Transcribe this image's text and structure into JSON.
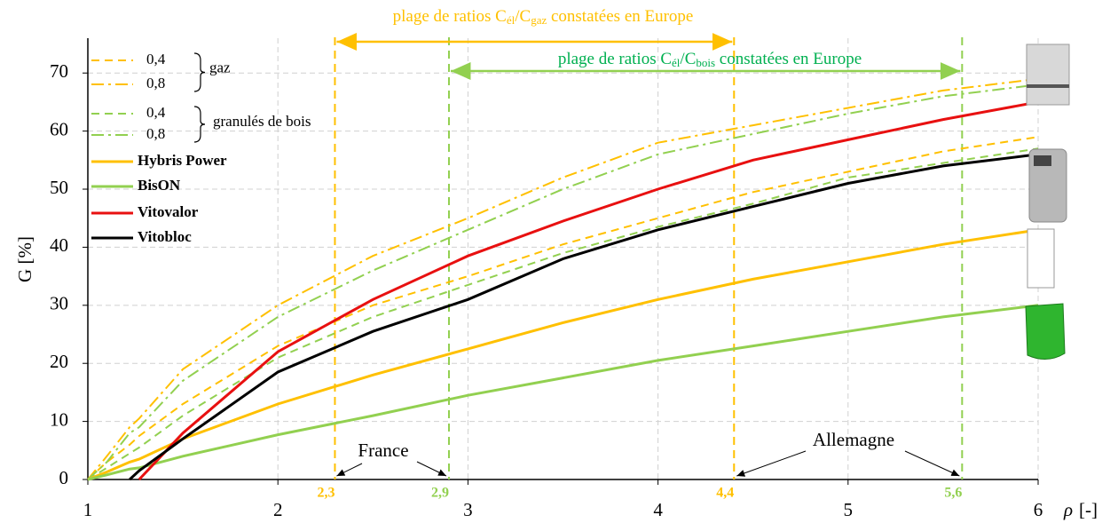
{
  "chart_data": {
    "type": "line",
    "x": [
      1,
      1.1,
      1.22,
      1.27,
      1.5,
      2,
      2.5,
      3,
      3.5,
      4,
      4.5,
      5,
      5.5,
      6
    ],
    "series": [
      {
        "name": "0,4",
        "color": "#ffc000",
        "dash": "dashed",
        "values": [
          0,
          3,
          6,
          7.5,
          13,
          23,
          30,
          35,
          40.5,
          45,
          49.5,
          53,
          56.5,
          59
        ]
      },
      {
        "name": "0,8",
        "color": "#ffc000",
        "dash": "dashdot",
        "values": [
          0,
          4,
          9,
          10.5,
          19,
          30,
          38.5,
          45,
          52,
          58,
          61,
          64,
          67,
          69
        ]
      },
      {
        "name": "0,4",
        "color": "#92d050",
        "dash": "dashed",
        "values": [
          0,
          2,
          4.5,
          5.5,
          11,
          21,
          28,
          33.5,
          39,
          43.5,
          47.5,
          52,
          54.5,
          57
        ]
      },
      {
        "name": "0,8",
        "color": "#92d050",
        "dash": "dashdot",
        "values": [
          0,
          3,
          8,
          9,
          17,
          28,
          36,
          43,
          50,
          56,
          59.5,
          63,
          66,
          68
        ]
      },
      {
        "name": "Hybris Power",
        "color": "#ffc000",
        "dash": "solid",
        "values": [
          0,
          1.3,
          3,
          3.5,
          7,
          13,
          18,
          22.5,
          27,
          31,
          34.5,
          37.5,
          40.5,
          43
        ]
      },
      {
        "name": "BisON",
        "color": "#92d050",
        "dash": "solid",
        "values": [
          0,
          0.8,
          1.8,
          2,
          4,
          7.7,
          11,
          14.5,
          17.5,
          20.5,
          23,
          25.5,
          28,
          30
        ]
      },
      {
        "name": "Vitovalor",
        "color": "#e81010",
        "dash": "solid",
        "values": [
          null,
          null,
          null,
          0,
          8,
          22,
          31,
          38.5,
          44.5,
          50,
          55,
          58.5,
          62,
          65
        ]
      },
      {
        "name": "Vitobloc",
        "color": "#000000",
        "dash": "solid",
        "values": [
          null,
          null,
          0,
          1.5,
          7,
          18.5,
          25.5,
          31,
          38,
          43,
          47,
          51,
          54,
          56
        ]
      }
    ],
    "legend_groups": [
      {
        "label": "gaz"
      },
      {
        "label": "granulés de bois"
      }
    ],
    "x_label": [
      "ρ",
      "[-]"
    ],
    "y_label": "G [%]",
    "xlim": [
      1,
      6
    ],
    "ylim": [
      0,
      76
    ],
    "xticks": [
      1,
      2,
      3,
      4,
      5,
      6
    ],
    "yticks": [
      0,
      10,
      20,
      30,
      40,
      50,
      60,
      70
    ],
    "grid": true,
    "reference_lines": [
      {
        "value": 2.3,
        "label": "2,3",
        "color": "#ffc000"
      },
      {
        "value": 2.9,
        "label": "2,9",
        "color": "#92d050"
      },
      {
        "value": 4.4,
        "label": "4,4",
        "color": "#ffc000"
      },
      {
        "value": 5.6,
        "label": "5,6",
        "color": "#92d050"
      }
    ],
    "ranges": [
      {
        "from": 2.3,
        "to": 4.4,
        "color": "#ffc000",
        "text_color": "#ffc000",
        "text_parts": [
          "plage de ratios C",
          "él",
          "/C",
          "gaz",
          " constatées en Europe"
        ]
      },
      {
        "from": 2.9,
        "to": 5.6,
        "color": "#92d050",
        "text_color": "#00b050",
        "text_parts": [
          "plage de ratios C",
          "él",
          "/C",
          "bois",
          " constatées en Europe"
        ]
      }
    ],
    "annotations": [
      {
        "text": "France"
      },
      {
        "text": "Allemagne"
      }
    ]
  }
}
